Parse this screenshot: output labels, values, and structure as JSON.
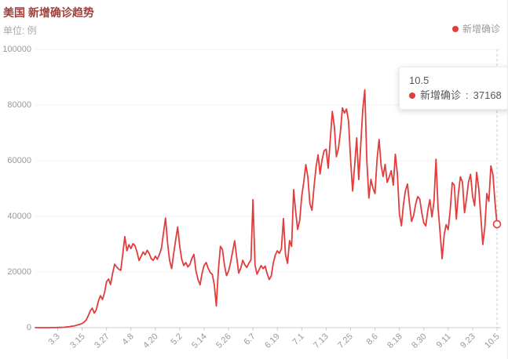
{
  "header": {
    "title": "美国 新增确诊趋势",
    "subtitle": "单位: 例"
  },
  "legend": {
    "label": "新增确诊",
    "color": "#e23c3c"
  },
  "tooltip": {
    "x_label": "10.5",
    "series_label": "新增确诊",
    "separator": ": ",
    "value": "37168"
  },
  "colors": {
    "title": "#a1403c",
    "line": "#e23c3c",
    "axis_label": "#999999",
    "grid": "#f0f0f0",
    "axis_line": "#cccccc",
    "pointer_line": "#c9c9c9"
  },
  "chart_data": {
    "type": "line",
    "title": "美国 新增确诊趋势",
    "unit": "单位: 例",
    "series_name": "新增确诊",
    "grid": true,
    "legend_position": "top-right",
    "ylim": [
      0,
      100000
    ],
    "y_ticks": [
      0,
      20000,
      40000,
      60000,
      80000,
      100000
    ],
    "x_start_date": "2.21",
    "x_tick_labels": [
      "3.3",
      "3.15",
      "3.27",
      "4.8",
      "4.20",
      "5.2",
      "5.14",
      "5.26",
      "6.7",
      "6.19",
      "7.1",
      "7.13",
      "7.25",
      "8.6",
      "8.18",
      "8.30",
      "9.11",
      "9.23",
      "10.5"
    ],
    "first_tick_index": 11,
    "tick_interval_days": 12,
    "highlight": {
      "x": "10.5",
      "value": 37168
    },
    "values": [
      0,
      0,
      0,
      0,
      0,
      0,
      5,
      10,
      20,
      30,
      40,
      60,
      80,
      100,
      150,
      200,
      300,
      400,
      500,
      600,
      800,
      1000,
      1200,
      1500,
      2000,
      2800,
      4200,
      6000,
      7000,
      5200,
      6500,
      9500,
      11500,
      10100,
      12500,
      16500,
      17500,
      15500,
      19500,
      22800,
      21800,
      21000,
      20600,
      26500,
      32700,
      27600,
      29800,
      28400,
      30200,
      29500,
      27200,
      24100,
      25600,
      27200,
      26200,
      27800,
      26600,
      24800,
      24200,
      25700,
      24600,
      26300,
      28500,
      34000,
      39400,
      30500,
      24200,
      21200,
      26400,
      31500,
      36200,
      29200,
      24500,
      22300,
      23400,
      21800,
      22700,
      25000,
      26300,
      20400,
      17300,
      15400,
      19600,
      22400,
      23400,
      21300,
      19800,
      19100,
      15500,
      7800,
      20500,
      29200,
      28100,
      22400,
      18700,
      20300,
      23500,
      27400,
      31200,
      25400,
      19600,
      21400,
      24200,
      22600,
      21600,
      23200,
      24300,
      46000,
      22500,
      19200,
      20800,
      22300,
      21200,
      22100,
      19300,
      17300,
      18600,
      23300,
      26200,
      27600,
      26700,
      28300,
      39200,
      26300,
      23100,
      31300,
      29200,
      49600,
      41500,
      35300,
      38500,
      47200,
      52400,
      58600,
      54200,
      44500,
      42200,
      50400,
      57700,
      62100,
      55200,
      60300,
      63600,
      64100,
      57300,
      67400,
      77700,
      72300,
      61400,
      64300,
      70200,
      79000,
      77100,
      78600,
      74200,
      60500,
      49100,
      58300,
      68200,
      53200,
      65400,
      78300,
      85500,
      60200,
      46600,
      53300,
      50100,
      48200,
      60400,
      67600,
      58300,
      54300,
      58700,
      52200,
      54100,
      56400,
      51200,
      62300,
      55300,
      40900,
      36600,
      44200,
      49300,
      51600,
      44300,
      38200,
      40300,
      44400,
      47100,
      46200,
      41300,
      37700,
      36600,
      42200,
      46000,
      39800,
      45200,
      60500,
      43200,
      34200,
      24800,
      33300,
      37000,
      35200,
      42300,
      52100,
      51200,
      39000,
      48200,
      54200,
      52300,
      41300,
      46200,
      52300,
      55100,
      47200,
      43800,
      55800,
      50200,
      40300,
      29900,
      36200,
      48200,
      45400,
      58100,
      55000,
      45200,
      37168
    ]
  }
}
